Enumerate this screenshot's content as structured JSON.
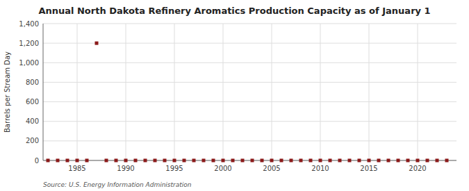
{
  "chart_data": {
    "type": "scatter",
    "title": "Annual North Dakota Refinery Aromatics Production Capacity as of January 1",
    "ylabel": "Barrels per Stream Day",
    "annotation": "Source: U.S. Energy Information Administration",
    "x": [
      1982,
      1983,
      1984,
      1985,
      1986,
      1987,
      1988,
      1989,
      1990,
      1991,
      1992,
      1993,
      1994,
      1995,
      1996,
      1997,
      1998,
      1999,
      2000,
      2001,
      2002,
      2003,
      2004,
      2005,
      2006,
      2007,
      2008,
      2009,
      2010,
      2011,
      2012,
      2013,
      2014,
      2015,
      2016,
      2017,
      2018,
      2019,
      2020,
      2021,
      2022,
      2023
    ],
    "values": [
      0,
      0,
      0,
      0,
      0,
      1200,
      0,
      0,
      0,
      0,
      0,
      0,
      0,
      0,
      0,
      0,
      0,
      0,
      0,
      0,
      0,
      0,
      0,
      0,
      0,
      0,
      0,
      0,
      0,
      0,
      0,
      0,
      0,
      0,
      0,
      0,
      0,
      0,
      0,
      0,
      0,
      0
    ],
    "color": "#8b1a1a",
    "marker": "square",
    "xlim": [
      1981.5,
      2024
    ],
    "ylim": [
      0,
      1400
    ],
    "xticks": [
      1985,
      1990,
      1995,
      2000,
      2005,
      2010,
      2015,
      2020
    ],
    "yticks": [
      0,
      200,
      400,
      600,
      800,
      {
        "value": 1000,
        "label": "1,000"
      },
      {
        "value": 1200,
        "label": "1,200"
      },
      {
        "value": 1400,
        "label": "1,400"
      }
    ],
    "grid": true
  }
}
